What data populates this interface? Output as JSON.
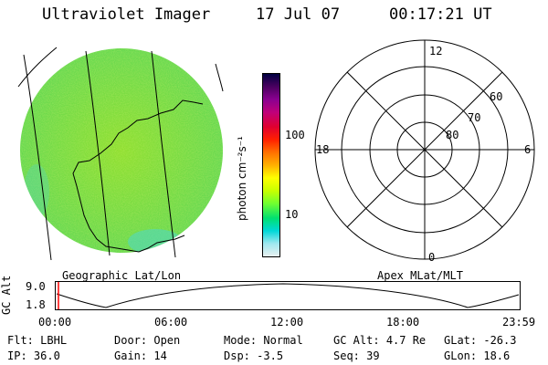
{
  "header": {
    "instrument": "Ultraviolet Imager",
    "date": "17 Jul 07",
    "time": "00:17:21 UT"
  },
  "colorbar": {
    "unit_label": "photon cm⁻²s⁻¹",
    "ticks": [
      "100",
      "10"
    ],
    "colors": [
      "#000040",
      "#4a0060",
      "#8a0090",
      "#c0007a",
      "#e00030",
      "#ff2000",
      "#ff7000",
      "#ffb000",
      "#ffff00",
      "#c8ff00",
      "#70ff30",
      "#00e070",
      "#00d8d8",
      "#a0e8f0",
      "#e8f0f0"
    ]
  },
  "polar": {
    "top_label": "12",
    "bottom_label": "0",
    "left_label": "18",
    "right_label": "6",
    "ring_labels": [
      "60",
      "70",
      "80"
    ]
  },
  "panel_labels": {
    "left": "Geographic Lat/Lon",
    "right": "Apex MLat/MLT"
  },
  "altitude_plot": {
    "y_title": "GC Alt",
    "y_top": "9.0",
    "y_bottom": "1.8",
    "x_ticks": [
      "00:00",
      "06:00",
      "12:00",
      "18:00",
      "23:59"
    ],
    "curve_color": "#000000",
    "marker_color": "#ff0000"
  },
  "info": {
    "row1": [
      {
        "label": "Flt:",
        "value": "LBHL"
      },
      {
        "label": "Door:",
        "value": "Open"
      },
      {
        "label": "Mode:",
        "value": "Normal"
      },
      {
        "label": "GC Alt:",
        "value": "4.7 Re"
      },
      {
        "label": "GLat:",
        "value": "-26.3"
      }
    ],
    "row2": [
      {
        "label": "IP:",
        "value": "36.0"
      },
      {
        "label": "Gain:",
        "value": "14"
      },
      {
        "label": "Dsp:",
        "value": "-3.5"
      },
      {
        "label": "Seq:",
        "value": "39"
      },
      {
        "label": "GLon:",
        "value": "18.6"
      }
    ]
  }
}
